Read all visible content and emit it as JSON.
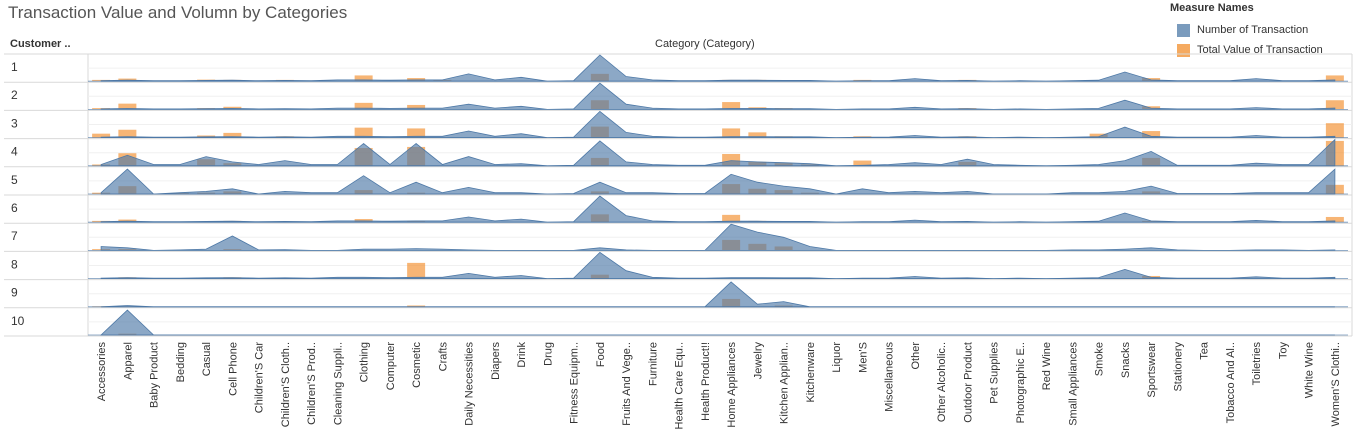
{
  "chart_data": {
    "type": "area",
    "title": "Transaction Value and Volumn by Categories",
    "row_header": "Customer ..",
    "column_header": "Category (Category)",
    "rows": [
      "1",
      "2",
      "3",
      "4",
      "5",
      "6",
      "7",
      "8",
      "9",
      "10"
    ],
    "categories": [
      "Accessories",
      "Apparel",
      "Baby Product",
      "Bedding",
      "Casual",
      "Cell Phone",
      "Children'S Car",
      "Children'S Cloth..",
      "Children'S Prod..",
      "Cleaning Suppli..",
      "Clothing",
      "Computer",
      "Cosmetic",
      "Crafts",
      "Daily Necessities",
      "Diapers",
      "Drink",
      "Drug",
      "Fitness Equipm..",
      "Food",
      "Fruits And Vege..",
      "Furniture",
      "Health Care Equ..",
      "Health Product!!",
      "Home Appliances",
      "Jewelry",
      "Kitchen Applian..",
      "Kitchenware",
      "Liquor",
      "Men'S",
      "Miscellaneous",
      "Other",
      "Other Alcoholic..",
      "Outdoor Product",
      "Pet Supplies",
      "Photographic E..",
      "Red Wine",
      "Small Appliances",
      "Smoke",
      "Snacks",
      "Sportswear",
      "Stationery",
      "Tea",
      "Tobacco And Al..",
      "Toiletries",
      "Toy",
      "White Wine",
      "Women'S Clothi.."
    ],
    "legend_title": "Measure Names",
    "series": [
      {
        "name": "Number of Transaction",
        "color": "#4e79a7"
      },
      {
        "name": "Total Value of Transaction",
        "color": "#f28e2b"
      }
    ],
    "transactions": [
      [
        0.02,
        0.04,
        0.02,
        0.02,
        0.03,
        0.04,
        0.02,
        0.03,
        0.02,
        0.05,
        0.05,
        0.04,
        0.05,
        0.05,
        0.28,
        0.05,
        0.15,
        0,
        0.02,
        1.0,
        0.18,
        0.05,
        0.02,
        0.02,
        0.04,
        0.04,
        0.03,
        0.03,
        0,
        0.02,
        0.02,
        0.1,
        0.02,
        0.03,
        0,
        0.02,
        0,
        0.02,
        0.04,
        0.35,
        0.05,
        0.02,
        0.02,
        0.02,
        0.1,
        0.02,
        0.02,
        0.05
      ],
      [
        0.02,
        0.04,
        0.02,
        0.02,
        0.03,
        0.04,
        0.02,
        0.03,
        0.02,
        0.05,
        0.05,
        0.04,
        0.05,
        0.05,
        0.2,
        0.05,
        0.12,
        0,
        0.02,
        1.0,
        0.2,
        0.05,
        0.02,
        0.02,
        0.04,
        0.04,
        0.03,
        0.03,
        0,
        0.02,
        0.02,
        0.08,
        0.02,
        0.03,
        0,
        0.02,
        0,
        0.02,
        0.04,
        0.35,
        0.05,
        0.02,
        0.02,
        0.02,
        0.07,
        0.02,
        0.02,
        0.05
      ],
      [
        0.02,
        0.04,
        0.02,
        0.02,
        0.03,
        0.04,
        0.02,
        0.03,
        0.02,
        0.05,
        0.05,
        0.04,
        0.05,
        0.05,
        0.25,
        0.05,
        0.15,
        0,
        0.02,
        1.0,
        0.2,
        0.05,
        0.02,
        0.02,
        0.04,
        0.04,
        0.03,
        0.03,
        0,
        0.02,
        0.02,
        0.08,
        0.02,
        0.03,
        0,
        0.02,
        0,
        0.02,
        0.04,
        0.4,
        0.05,
        0.02,
        0.02,
        0.02,
        0.08,
        0.02,
        0.02,
        0.05
      ],
      [
        0.05,
        0.4,
        0.05,
        0.05,
        0.35,
        0.15,
        0.05,
        0.2,
        0.05,
        0.05,
        0.85,
        0.05,
        0.85,
        0.05,
        0.35,
        0.05,
        0.08,
        0,
        0.02,
        0.95,
        0.15,
        0.05,
        0.02,
        0.02,
        0.2,
        0.15,
        0.12,
        0.08,
        0,
        0.02,
        0.05,
        0.12,
        0.05,
        0.25,
        0.05,
        0.02,
        0,
        0.02,
        0.05,
        0.2,
        0.55,
        0.02,
        0.02,
        0.02,
        0.1,
        0.05,
        0.05,
        1.0
      ],
      [
        0.05,
        0.95,
        0,
        0.05,
        0.1,
        0.2,
        0,
        0.1,
        0.05,
        0.05,
        0.7,
        0.05,
        0.45,
        0.05,
        0.25,
        0.05,
        0.05,
        0,
        0.02,
        0.45,
        0.05,
        0.05,
        0.02,
        0.02,
        0.75,
        0.45,
        0.3,
        0.2,
        0,
        0.2,
        0.05,
        0.1,
        0.05,
        0.1,
        0,
        0,
        0,
        0.05,
        0.05,
        0.1,
        0.3,
        0.02,
        0.02,
        0.02,
        0.05,
        0.05,
        0.05,
        0.95
      ],
      [
        0.02,
        0.04,
        0.02,
        0.02,
        0.03,
        0.04,
        0.02,
        0.03,
        0.02,
        0.05,
        0.05,
        0.04,
        0.05,
        0.05,
        0.2,
        0.05,
        0.12,
        0,
        0.02,
        1.0,
        0.25,
        0.05,
        0.02,
        0.02,
        0.04,
        0.04,
        0.03,
        0.03,
        0,
        0.02,
        0.02,
        0.08,
        0.02,
        0.03,
        0,
        0.02,
        0,
        0.02,
        0.04,
        0.35,
        0.05,
        0.02,
        0.02,
        0.02,
        0.07,
        0.02,
        0.02,
        0.05
      ],
      [
        0.15,
        0.1,
        0,
        0.02,
        0.05,
        0.55,
        0.02,
        0.03,
        0,
        0,
        0.05,
        0.05,
        0.07,
        0.05,
        0.02,
        0,
        0,
        0,
        0,
        0.1,
        0.02,
        0,
        0,
        0,
        1.0,
        0.7,
        0.5,
        0.15,
        0,
        0,
        0,
        0,
        0,
        0,
        0,
        0,
        0,
        0.02,
        0.02,
        0.05,
        0.1,
        0.02,
        0,
        0,
        0.02,
        0.02,
        0,
        0.02
      ],
      [
        0.02,
        0.04,
        0.02,
        0.02,
        0.03,
        0.04,
        0.02,
        0.03,
        0.02,
        0.05,
        0.05,
        0.04,
        0.05,
        0.05,
        0.2,
        0.05,
        0.12,
        0,
        0.02,
        1.0,
        0.3,
        0.05,
        0.02,
        0.02,
        0.04,
        0.04,
        0.03,
        0.03,
        0,
        0.02,
        0.02,
        0.08,
        0.02,
        0.03,
        0,
        0.02,
        0,
        0.02,
        0.04,
        0.35,
        0.05,
        0.02,
        0.02,
        0.02,
        0.07,
        0.02,
        0.02,
        0.05
      ],
      [
        0,
        0.05,
        0,
        0,
        0,
        0,
        0,
        0,
        0,
        0,
        0,
        0,
        0,
        0,
        0,
        0,
        0,
        0,
        0,
        0,
        0,
        0,
        0,
        0,
        0.95,
        0.1,
        0.2,
        0,
        0,
        0,
        0,
        0,
        0,
        0,
        0,
        0,
        0,
        0,
        0,
        0,
        0,
        0,
        0,
        0,
        0,
        0,
        0,
        0
      ],
      [
        0,
        0.95,
        0,
        0,
        0,
        0,
        0,
        0,
        0,
        0,
        0,
        0,
        0,
        0,
        0,
        0,
        0,
        0,
        0,
        0,
        0,
        0,
        0,
        0,
        0,
        0,
        0,
        0,
        0,
        0,
        0,
        0,
        0,
        0,
        0,
        0,
        0,
        0,
        0,
        0,
        0,
        0,
        0,
        0,
        0,
        0,
        0,
        0
      ]
    ],
    "values": [
      [
        0.05,
        0.1,
        0,
        0,
        0.06,
        0.05,
        0,
        0.05,
        0,
        0,
        0.22,
        0,
        0.12,
        0.05,
        0,
        0,
        0,
        0,
        0,
        0.28,
        0,
        0,
        0,
        0,
        0.05,
        0.05,
        0,
        0,
        0,
        0.05,
        0,
        0,
        0,
        0.05,
        0,
        0,
        0,
        0,
        0,
        0,
        0.12,
        0,
        0,
        0,
        0,
        0,
        0,
        0.22
      ],
      [
        0.05,
        0.22,
        0,
        0,
        0.05,
        0.1,
        0,
        0,
        0,
        0,
        0.25,
        0,
        0.17,
        0,
        0,
        0,
        0,
        0,
        0,
        0.35,
        0,
        0,
        0,
        0,
        0.28,
        0.08,
        0.05,
        0,
        0,
        0,
        0,
        0,
        0,
        0.05,
        0,
        0,
        0,
        0,
        0,
        0,
        0.12,
        0,
        0,
        0,
        0,
        0,
        0,
        0.35
      ],
      [
        0.15,
        0.3,
        0,
        0,
        0.08,
        0.18,
        0,
        0.05,
        0,
        0,
        0.38,
        0,
        0.35,
        0,
        0,
        0,
        0,
        0,
        0,
        0.42,
        0,
        0,
        0,
        0,
        0.35,
        0.2,
        0.05,
        0,
        0,
        0.05,
        0,
        0,
        0,
        0.05,
        0,
        0,
        0,
        0,
        0.15,
        0,
        0.25,
        0,
        0,
        0,
        0,
        0,
        0,
        0.55
      ],
      [
        0.05,
        0.48,
        0,
        0,
        0.25,
        0.1,
        0,
        0,
        0,
        0,
        0.68,
        0,
        0.72,
        0,
        0,
        0,
        0,
        0,
        0,
        0.3,
        0,
        0,
        0,
        0,
        0.45,
        0.15,
        0.1,
        0.05,
        0,
        0.2,
        0,
        0,
        0,
        0.15,
        0,
        0,
        0,
        0,
        0,
        0,
        0.3,
        0,
        0,
        0,
        0,
        0,
        0,
        0.95
      ],
      [
        0.05,
        0.3,
        0,
        0.04,
        0.05,
        0.1,
        0,
        0,
        0,
        0,
        0.15,
        0,
        0.05,
        0,
        0,
        0,
        0,
        0,
        0,
        0.1,
        0,
        0,
        0,
        0,
        0.38,
        0.2,
        0.15,
        0.05,
        0,
        0,
        0,
        0,
        0,
        0,
        0,
        0,
        0,
        0,
        0,
        0,
        0.1,
        0,
        0,
        0,
        0,
        0,
        0,
        0.35
      ],
      [
        0.05,
        0.1,
        0,
        0,
        0,
        0.05,
        0,
        0,
        0,
        0,
        0.12,
        0,
        0.05,
        0,
        0,
        0,
        0,
        0,
        0,
        0.3,
        0,
        0,
        0,
        0,
        0.28,
        0.05,
        0,
        0,
        0,
        0,
        0,
        0,
        0,
        0,
        0,
        0,
        0,
        0,
        0,
        0,
        0.05,
        0,
        0,
        0,
        0,
        0,
        0,
        0.2
      ],
      [
        0.05,
        0.05,
        0,
        0,
        0,
        0.05,
        0,
        0,
        0,
        0,
        0,
        0,
        0,
        0,
        0,
        0,
        0,
        0,
        0,
        0,
        0,
        0,
        0,
        0,
        0.4,
        0.25,
        0.15,
        0,
        0,
        0,
        0,
        0,
        0,
        0,
        0,
        0,
        0,
        0,
        0,
        0,
        0,
        0,
        0,
        0,
        0,
        0,
        0,
        0
      ],
      [
        0,
        0.05,
        0,
        0,
        0,
        0.05,
        0,
        0,
        0,
        0,
        0,
        0,
        0.6,
        0,
        0,
        0,
        0,
        0,
        0,
        0.15,
        0,
        0,
        0,
        0,
        0,
        0,
        0,
        0,
        0,
        0,
        0,
        0,
        0,
        0,
        0,
        0,
        0,
        0,
        0,
        0,
        0.1,
        0,
        0,
        0,
        0,
        0,
        0,
        0
      ],
      [
        0.02,
        0.02,
        0,
        0,
        0,
        0,
        0,
        0,
        0,
        0,
        0,
        0,
        0.05,
        0,
        0,
        0,
        0,
        0,
        0,
        0,
        0,
        0,
        0,
        0,
        0.3,
        0,
        0.05,
        0,
        0,
        0,
        0,
        0,
        0,
        0,
        0,
        0,
        0,
        0,
        0,
        0,
        0,
        0,
        0,
        0,
        0,
        0,
        0,
        0
      ],
      [
        0,
        0.05,
        0,
        0,
        0,
        0,
        0,
        0,
        0,
        0,
        0,
        0,
        0,
        0,
        0,
        0,
        0,
        0,
        0,
        0,
        0,
        0,
        0,
        0,
        0,
        0,
        0,
        0,
        0,
        0,
        0,
        0,
        0,
        0,
        0,
        0,
        0,
        0,
        0,
        0,
        0,
        0,
        0,
        0,
        0,
        0,
        0,
        0
      ]
    ]
  }
}
